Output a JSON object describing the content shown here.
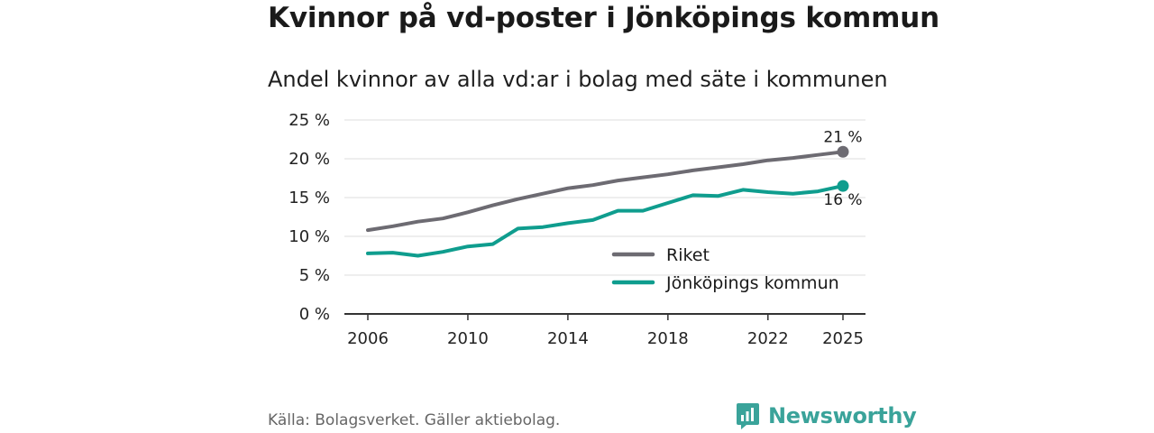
{
  "header": {
    "title": "Kvinnor på vd-poster i Jönköpings kommun",
    "subtitle": "Andel kvinnor av alla vd:ar i bolag med säte i kommunen"
  },
  "footer": {
    "source": "Källa: Bolagsverket. Gäller aktiebolag.",
    "brand": "Newsworthy"
  },
  "colors": {
    "riket": "#6d6b72",
    "kommun": "#0f9d8e",
    "brand": "#3aa39a"
  },
  "chart_data": {
    "type": "line",
    "title": "Kvinnor på vd-poster i Jönköpings kommun",
    "subtitle": "Andel kvinnor av alla vd:ar i bolag med säte i kommunen",
    "xlabel": "",
    "ylabel": "",
    "x": [
      2006,
      2007,
      2008,
      2009,
      2010,
      2011,
      2012,
      2013,
      2014,
      2015,
      2016,
      2017,
      2018,
      2019,
      2020,
      2021,
      2022,
      2023,
      2024,
      2025
    ],
    "x_ticks": [
      "2006",
      "2010",
      "2014",
      "2018",
      "2022",
      "2025"
    ],
    "y_ticks": [
      "0 %",
      "5 %",
      "10 %",
      "15 %",
      "20 %",
      "25 %"
    ],
    "ylim": [
      0,
      25
    ],
    "grid": true,
    "legend_position": "lower-right",
    "series": [
      {
        "name": "Riket",
        "color": "#6d6b72",
        "values": [
          10.8,
          11.3,
          11.9,
          12.3,
          13.1,
          14.0,
          14.8,
          15.5,
          16.2,
          16.6,
          17.2,
          17.6,
          18.0,
          18.5,
          18.9,
          19.3,
          19.8,
          20.1,
          20.5,
          20.9
        ],
        "end_label": "21 %"
      },
      {
        "name": "Jönköpings kommun",
        "color": "#0f9d8e",
        "values": [
          7.8,
          7.9,
          7.5,
          8.0,
          8.7,
          9.0,
          11.0,
          11.2,
          11.7,
          12.1,
          13.3,
          13.3,
          14.3,
          15.3,
          15.2,
          16.0,
          15.7,
          15.5,
          15.8,
          16.5
        ],
        "end_label": "16 %"
      }
    ]
  }
}
